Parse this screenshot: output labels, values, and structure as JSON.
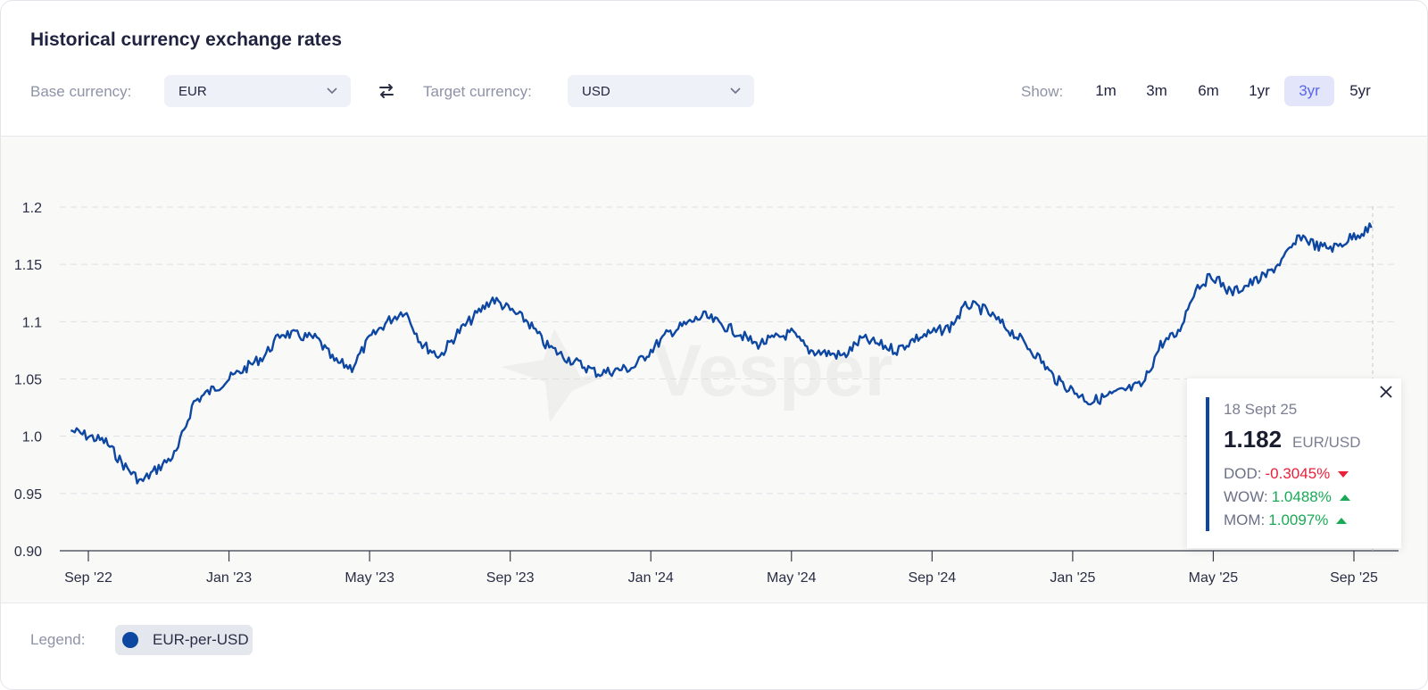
{
  "header": {
    "title": "Historical currency exchange rates",
    "base_label": "Base currency:",
    "base_value": "EUR",
    "target_label": "Target currency:",
    "target_value": "USD",
    "show_label": "Show:",
    "ranges": [
      "1m",
      "3m",
      "6m",
      "1yr",
      "3yr",
      "5yr"
    ],
    "active_range": "3yr"
  },
  "tooltip": {
    "date": "18 Sept 25",
    "value": "1.182",
    "pair": "EUR/USD",
    "stats": [
      {
        "label": "DOD:",
        "value": "-0.3045%",
        "direction": "down"
      },
      {
        "label": "WOW:",
        "value": "1.0488%",
        "direction": "up"
      },
      {
        "label": "MOM:",
        "value": "1.0097%",
        "direction": "up"
      }
    ]
  },
  "legend": {
    "label": "Legend:",
    "series_name": "EUR-per-USD",
    "series_color": "#0d47a1"
  },
  "watermark": "Vesper",
  "chart_data": {
    "type": "line",
    "title": "",
    "xlabel": "",
    "ylabel": "",
    "ylim": [
      0.9,
      1.2
    ],
    "y_ticks": [
      0.9,
      0.95,
      1.0,
      1.05,
      1.1,
      1.15,
      1.2
    ],
    "y_tick_labels": [
      "0.90",
      "0.95",
      "1.0",
      "1.05",
      "1.1",
      "1.15",
      "1.2"
    ],
    "x_ticks": [
      "Sep '22",
      "Jan '23",
      "May '23",
      "Sep '23",
      "Jan '24",
      "May '24",
      "Sep '24",
      "Jan '25",
      "May '25",
      "Sep '25"
    ],
    "grid": true,
    "color": "#0d47a1",
    "series": [
      {
        "name": "EUR-per-USD",
        "points": [
          [
            "Aug '22",
            1.005
          ],
          [
            "Sep '22",
            0.995
          ],
          [
            "Oct '22",
            0.975
          ],
          [
            "Oct '22",
            0.96
          ],
          [
            "Nov '22",
            0.985
          ],
          [
            "Dec '22",
            1.03
          ],
          [
            "Dec '22",
            1.04
          ],
          [
            "Jan '23",
            1.06
          ],
          [
            "Feb '23",
            1.07
          ],
          [
            "Feb '23",
            1.09
          ],
          [
            "Mar '23",
            1.085
          ],
          [
            "Apr '23",
            1.065
          ],
          [
            "Apr '23",
            1.06
          ],
          [
            "May '23",
            1.085
          ],
          [
            "May '23",
            1.1
          ],
          [
            "Jun '23",
            1.11
          ],
          [
            "Jun '23",
            1.08
          ],
          [
            "Jul '23",
            1.07
          ],
          [
            "Jul '23",
            1.09
          ],
          [
            "Aug '23",
            1.12
          ],
          [
            "Sep '23",
            1.1
          ],
          [
            "Oct '23",
            1.08
          ],
          [
            "Oct '23",
            1.07
          ],
          [
            "Nov '23",
            1.055
          ],
          [
            "Dec '23",
            1.06
          ],
          [
            "Jan '24",
            1.09
          ],
          [
            "Feb '24",
            1.105
          ],
          [
            "Mar '24",
            1.09
          ],
          [
            "Apr '24",
            1.08
          ],
          [
            "Apr '24",
            1.085
          ],
          [
            "May '24",
            1.09
          ],
          [
            "May '24",
            1.075
          ],
          [
            "Jun '24",
            1.07
          ],
          [
            "Jul '24",
            1.085
          ],
          [
            "Jul '24",
            1.08
          ],
          [
            "Aug '24",
            1.075
          ],
          [
            "Aug '24",
            1.085
          ],
          [
            "Sep '24",
            1.095
          ],
          [
            "Oct '24",
            1.115
          ],
          [
            "Oct '24",
            1.11
          ],
          [
            "Nov '24",
            1.085
          ],
          [
            "Dec '24",
            1.07
          ],
          [
            "Dec '24",
            1.05
          ],
          [
            "Jan '25",
            1.04
          ],
          [
            "Jan '25",
            1.03
          ],
          [
            "Feb '25",
            1.035
          ],
          [
            "Feb '25",
            1.04
          ],
          [
            "Mar '25",
            1.045
          ],
          [
            "Mar '25",
            1.08
          ],
          [
            "Apr '25",
            1.09
          ],
          [
            "Apr '25",
            1.13
          ],
          [
            "May '25",
            1.14
          ],
          [
            "May '25",
            1.125
          ],
          [
            "Jun '25",
            1.14
          ],
          [
            "Jul '25",
            1.155
          ],
          [
            "Jul '25",
            1.175
          ],
          [
            "Aug '25",
            1.165
          ],
          [
            "Aug '25",
            1.165
          ],
          [
            "Sep '25",
            1.175
          ],
          [
            "Sep '25",
            1.182
          ]
        ]
      }
    ]
  }
}
